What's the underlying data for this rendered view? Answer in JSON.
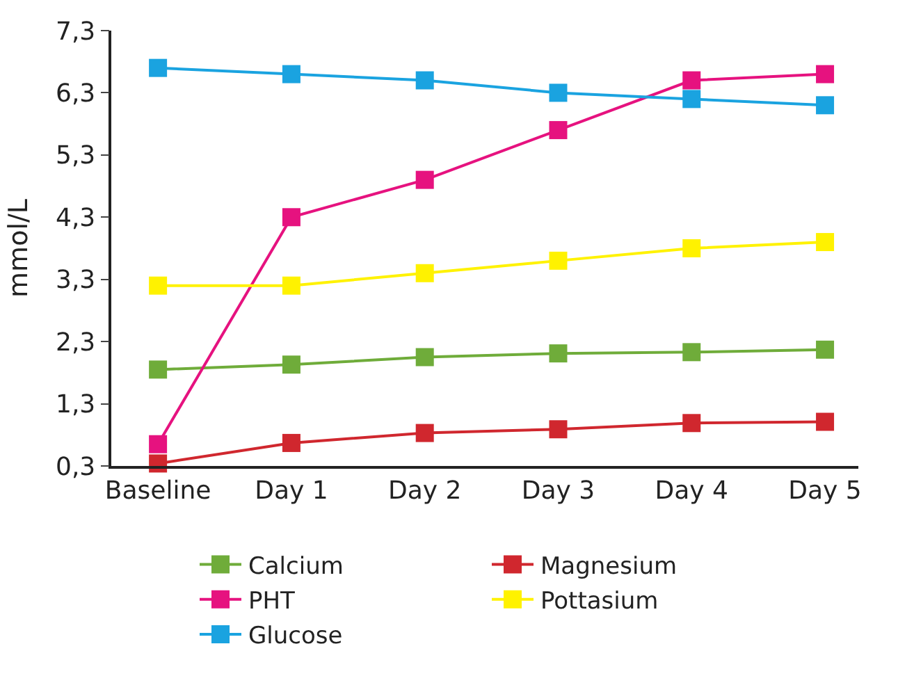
{
  "chart_data": {
    "type": "line",
    "ylabel": "mmol/L",
    "categories": [
      "Baseline",
      "Day 1",
      "Day 2",
      "Day 3",
      "Day 4",
      "Day 5"
    ],
    "series": [
      {
        "name": "Calcium",
        "color": "#6fac3a",
        "values": [
          1.85,
          1.93,
          2.05,
          2.11,
          2.13,
          2.17
        ]
      },
      {
        "name": "Magnesium",
        "color": "#d0272e",
        "values": [
          0.34,
          0.67,
          0.83,
          0.89,
          0.99,
          1.01
        ]
      },
      {
        "name": "PHT",
        "color": "#e6127f",
        "values": [
          0.65,
          4.3,
          4.9,
          5.7,
          6.5,
          6.6
        ]
      },
      {
        "name": "Pottasium",
        "color": "#fff200",
        "values": [
          3.2,
          3.2,
          3.4,
          3.6,
          3.8,
          3.9
        ]
      },
      {
        "name": "Glucose",
        "color": "#1aa3e0",
        "values": [
          6.7,
          6.6,
          6.5,
          6.3,
          6.2,
          6.1
        ]
      }
    ],
    "ylim": [
      0.3,
      7.3
    ],
    "yticks": [
      {
        "value": 0.3,
        "label": "0,3"
      },
      {
        "value": 1.3,
        "label": "1,3"
      },
      {
        "value": 2.3,
        "label": "2,3"
      },
      {
        "value": 3.3,
        "label": "3,3"
      },
      {
        "value": 4.3,
        "label": "4,3"
      },
      {
        "value": 5.3,
        "label": "5,3"
      },
      {
        "value": 6.3,
        "label": "6,3"
      },
      {
        "value": 7.3,
        "label": "7,3"
      }
    ],
    "legend": "bottom",
    "marker": "square",
    "line_style": "solid"
  }
}
